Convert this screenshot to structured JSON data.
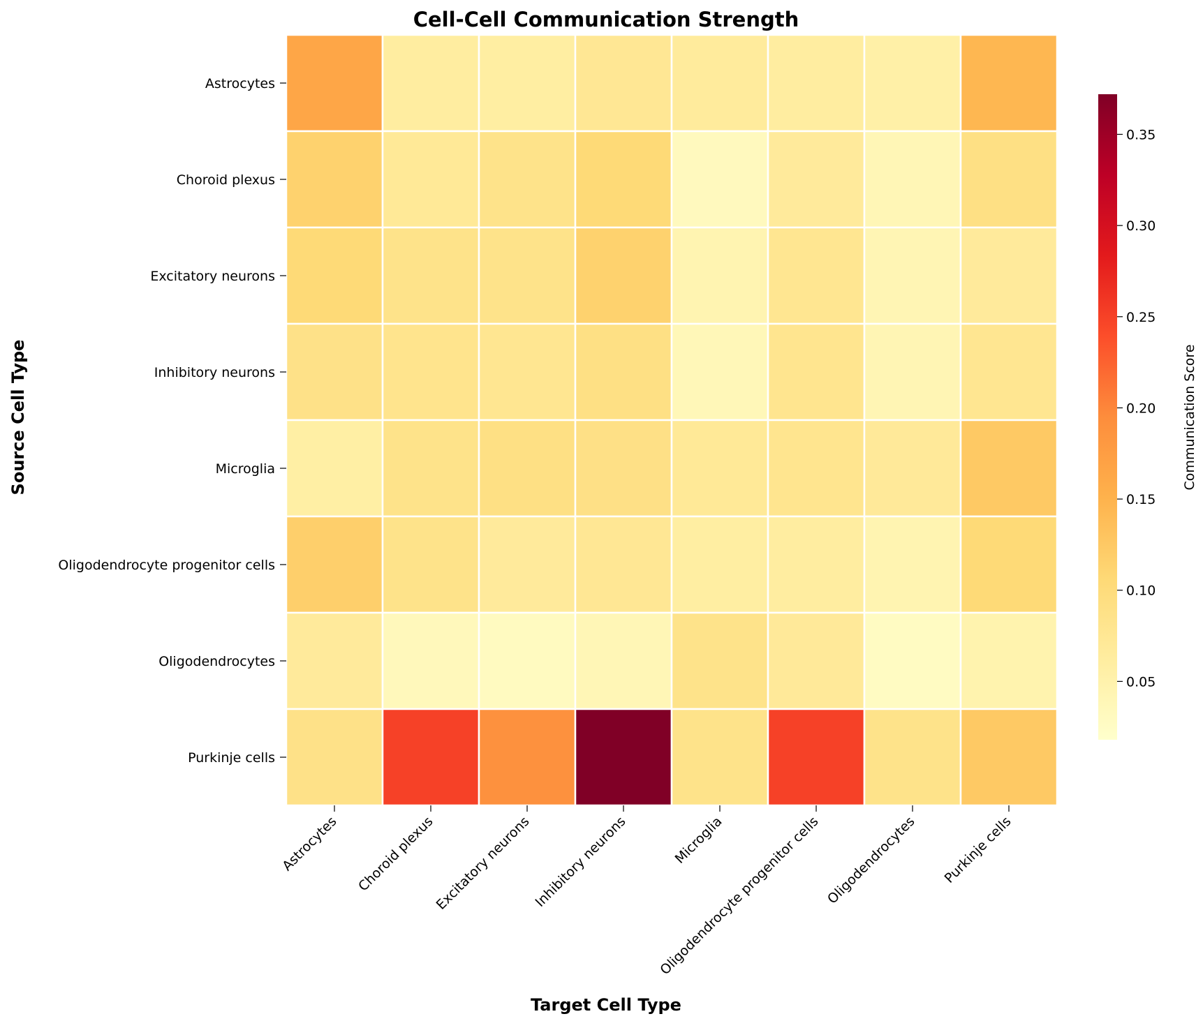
{
  "chart_data": {
    "type": "heatmap",
    "title": "Cell-Cell Communication Strength",
    "xlabel": "Target Cell Type",
    "ylabel": "Source Cell Type",
    "rows": [
      "Astrocytes",
      "Choroid plexus",
      "Excitatory neurons",
      "Inhibitory neurons",
      "Microglia",
      "Oligodendrocyte progenitor cells",
      "Oligodendrocytes",
      "Purkinje cells"
    ],
    "columns": [
      "Astrocytes",
      "Choroid plexus",
      "Excitatory neurons",
      "Inhibitory neurons",
      "Microglia",
      "Oligodendrocyte progenitor cells",
      "Oligodendrocytes",
      "Purkinje cells"
    ],
    "values": [
      [
        0.165,
        0.062,
        0.06,
        0.075,
        0.066,
        0.062,
        0.055,
        0.145
      ],
      [
        0.115,
        0.072,
        0.085,
        0.105,
        0.032,
        0.068,
        0.04,
        0.092
      ],
      [
        0.105,
        0.085,
        0.085,
        0.115,
        0.045,
        0.078,
        0.042,
        0.068
      ],
      [
        0.088,
        0.082,
        0.078,
        0.092,
        0.038,
        0.08,
        0.042,
        0.078
      ],
      [
        0.058,
        0.085,
        0.092,
        0.09,
        0.072,
        0.08,
        0.07,
        0.125
      ],
      [
        0.118,
        0.085,
        0.068,
        0.075,
        0.06,
        0.062,
        0.045,
        0.105
      ],
      [
        0.068,
        0.035,
        0.03,
        0.04,
        0.085,
        0.07,
        0.028,
        0.048
      ],
      [
        0.088,
        0.25,
        0.19,
        0.372,
        0.085,
        0.25,
        0.085,
        0.125
      ]
    ],
    "color_scale": {
      "colormap": "YlOrRd",
      "min": 0.018,
      "max": 0.372,
      "ticks": [
        0.05,
        0.1,
        0.15,
        0.2,
        0.25,
        0.3,
        0.35
      ],
      "tick_labels": [
        "0.05",
        "0.10",
        "0.15",
        "0.20",
        "0.25",
        "0.30",
        "0.35"
      ],
      "label": "Communication Score",
      "stops": [
        "#ffffcc",
        "#ffeda0",
        "#fed976",
        "#feb24c",
        "#fd8d3c",
        "#fc4e2a",
        "#e31a1c",
        "#bd0026",
        "#800026"
      ]
    },
    "grid_line_color": "#ffffff",
    "legend": "colorbar-right"
  }
}
